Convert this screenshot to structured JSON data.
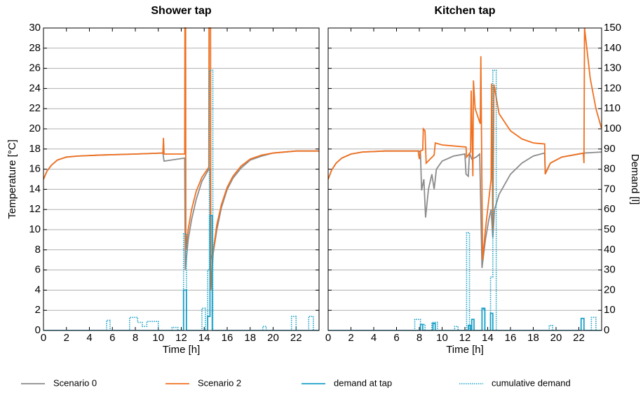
{
  "chart_data": [
    {
      "type": "line",
      "title": "Shower tap",
      "xlabel": "Time [h]",
      "ylabel": "Temperature [°C]",
      "xlim": [
        0,
        24
      ],
      "xticks": [
        0,
        2,
        4,
        6,
        8,
        10,
        12,
        14,
        16,
        18,
        20,
        22
      ],
      "ylim": [
        0,
        30
      ],
      "yticks": [
        0,
        2,
        4,
        6,
        8,
        10,
        12,
        14,
        16,
        18,
        20,
        22,
        24,
        26,
        28,
        30
      ],
      "y2lim": [
        0,
        150
      ],
      "grid": true,
      "series": [
        {
          "name": "Scenario 0",
          "color": "#8c8c8c",
          "x": [
            0,
            0.3,
            0.7,
            1.2,
            2,
            3,
            5,
            8,
            10.4,
            10.5,
            12.3,
            12.35,
            12.6,
            12.9,
            13.3,
            13.8,
            14.4,
            14.5,
            14.55,
            14.8,
            15.1,
            15.5,
            16,
            16.5,
            17.2,
            18,
            19,
            20,
            22,
            24
          ],
          "values": [
            15,
            15.8,
            16.4,
            16.9,
            17.2,
            17.3,
            17.4,
            17.5,
            17.6,
            16.8,
            17.1,
            6,
            9,
            11,
            13,
            14.8,
            16,
            16,
            7,
            7.8,
            10,
            12.2,
            14,
            15.1,
            16.1,
            16.9,
            17.3,
            17.6,
            17.8,
            17.8
          ]
        },
        {
          "name": "Scenario 2",
          "color": "#f07020",
          "x": [
            0,
            0.3,
            0.7,
            1.2,
            2,
            3,
            5,
            8,
            10.4,
            10.45,
            10.5,
            12.3,
            12.32,
            12.38,
            12.4,
            12.6,
            12.9,
            13.3,
            13.8,
            14.4,
            14.42,
            14.55,
            14.57,
            14.8,
            15.1,
            15.5,
            16,
            16.5,
            17.2,
            18,
            19,
            20,
            22,
            24
          ],
          "values": [
            15,
            15.8,
            16.4,
            16.9,
            17.2,
            17.3,
            17.4,
            17.5,
            17.6,
            19.1,
            17.5,
            17.5,
            30,
            30,
            8,
            10,
            12,
            13.8,
            15.2,
            16.2,
            30,
            30,
            4,
            8,
            10.5,
            12.5,
            14.2,
            15.3,
            16.3,
            17,
            17.4,
            17.6,
            17.8,
            17.8
          ]
        },
        {
          "name": "demand at tap",
          "color": "#1aa0c8",
          "axis": "y2",
          "x": [
            0,
            12.2,
            12.2,
            12.45,
            12.45,
            14.3,
            14.3,
            14.5,
            14.5,
            14.7,
            14.7,
            24
          ],
          "values": [
            0,
            0,
            20,
            20,
            0,
            0,
            7,
            7,
            57,
            57,
            0,
            0
          ]
        },
        {
          "name": "cumulative demand",
          "color": "#1aa0c8",
          "axis": "y2",
          "style": "dotted",
          "x": [
            0,
            5.5,
            5.5,
            5.8,
            5.8,
            7.5,
            7.5,
            8.2,
            8.2,
            8.6,
            8.6,
            9,
            9,
            9.2,
            9.2,
            10,
            10,
            11.2,
            11.2,
            11.7,
            11.7,
            12.2,
            12.2,
            12.45,
            12.45,
            13.8,
            13.8,
            14.1,
            14.1,
            14.3,
            14.3,
            14.45,
            14.45,
            14.75,
            14.75,
            19.1,
            19.1,
            19.4,
            19.4,
            21.6,
            21.6,
            22,
            22,
            23.1,
            23.1,
            23.5,
            23.5,
            24
          ],
          "values": [
            0,
            0,
            5,
            5,
            0,
            0,
            6.5,
            6.5,
            4,
            4,
            2,
            2,
            4.5,
            4.5,
            4.5,
            4.5,
            0,
            0,
            1.5,
            1.5,
            0,
            0,
            48,
            48,
            0,
            0,
            11,
            11,
            0,
            0,
            30,
            30,
            129,
            129,
            0,
            0,
            2,
            2,
            0,
            0,
            7,
            7,
            0,
            0,
            7,
            7,
            0,
            0
          ]
        }
      ]
    },
    {
      "type": "line",
      "title": "Kitchen tap",
      "xlabel": "Time [h]",
      "y2label": "Demand [l]",
      "xlim": [
        0,
        24
      ],
      "xticks": [
        0,
        2,
        4,
        6,
        8,
        10,
        12,
        14,
        16,
        18,
        20,
        22
      ],
      "ylim": [
        0,
        30
      ],
      "y2lim": [
        0,
        150
      ],
      "y2ticks": [
        0,
        10,
        20,
        30,
        40,
        50,
        60,
        70,
        80,
        90,
        100,
        110,
        120,
        130,
        140,
        150
      ],
      "grid": true,
      "series": [
        {
          "color": "#8c8c8c",
          "x": [
            0,
            0.3,
            0.7,
            1.2,
            2,
            3,
            5,
            8,
            8.1,
            8.2,
            8.4,
            8.55,
            8.8,
            9.1,
            9.3,
            9.5,
            10,
            11,
            12,
            12.1,
            12.3,
            12.4,
            12.6,
            13,
            13.3,
            13.5,
            13.8,
            14.1,
            14.3,
            14.45,
            14.6,
            15,
            16,
            17,
            18,
            19,
            19.05,
            19.5,
            20.5,
            22.5,
            24
          ],
          "values": [
            15,
            15.9,
            16.6,
            17.1,
            17.5,
            17.7,
            17.8,
            17.8,
            17.6,
            13.9,
            15,
            11.2,
            14,
            15.5,
            14,
            16,
            16.8,
            17.3,
            17.5,
            15.5,
            15.3,
            17.6,
            17,
            17.2,
            17.5,
            6.2,
            9,
            11,
            12,
            9.2,
            12,
            13.5,
            15.5,
            16.6,
            17.3,
            17.6,
            15.6,
            16.6,
            17.2,
            17.6,
            17.7
          ]
        },
        {
          "color": "#f07020",
          "x": [
            0,
            0.3,
            0.7,
            1.2,
            2,
            3,
            5,
            7.9,
            8,
            8.1,
            8.3,
            8.35,
            8.5,
            8.6,
            9.3,
            9.4,
            10,
            12.1,
            12.15,
            12.5,
            12.55,
            12.7,
            12.75,
            12.9,
            13.35,
            13.4,
            13.55,
            13.8,
            14.1,
            14.3,
            14.35,
            14.45,
            14.55,
            15,
            16,
            17,
            18,
            19,
            19.05,
            19.5,
            20.5,
            22.4,
            22.45,
            22.5,
            23,
            23.5,
            24
          ],
          "values": [
            15,
            15.9,
            16.6,
            17.1,
            17.5,
            17.7,
            17.8,
            17.8,
            17,
            17.8,
            17.9,
            20,
            19.8,
            16.6,
            17.4,
            18.6,
            18.4,
            18.2,
            17.2,
            17.7,
            23.8,
            15.3,
            24.8,
            22,
            20.5,
            27.2,
            7,
            10,
            13,
            15,
            24.5,
            10,
            24.4,
            21.5,
            19.8,
            19,
            18.6,
            18.5,
            15.5,
            16.6,
            17.2,
            17.6,
            16.6,
            30,
            25,
            22,
            20
          ]
        },
        {
          "color": "#1aa0c8",
          "axis": "y2",
          "x": [
            0,
            8.1,
            8.1,
            8.3,
            8.3,
            9.2,
            9.2,
            9.4,
            9.4,
            12.3,
            12.3,
            12.5,
            12.5,
            12.6,
            12.6,
            12.8,
            12.8,
            13.5,
            13.5,
            13.75,
            13.75,
            14.25,
            14.25,
            14.45,
            14.45,
            22.2,
            22.2,
            22.45,
            22.45,
            24
          ],
          "values": [
            0,
            0,
            3,
            3,
            0,
            0,
            3.5,
            3.5,
            0,
            0,
            2.5,
            2.5,
            0,
            0,
            5.5,
            5.5,
            0,
            0,
            11,
            11,
            0,
            0,
            8.5,
            8.5,
            0,
            0,
            6,
            6,
            0,
            0
          ]
        },
        {
          "color": "#1aa0c8",
          "axis": "y2",
          "style": "dotted",
          "x": [
            0,
            7.6,
            7.6,
            8.1,
            8.1,
            8.5,
            8.5,
            9.1,
            9.1,
            9.6,
            9.6,
            11.1,
            11.1,
            11.4,
            11.4,
            12.15,
            12.15,
            12.4,
            12.4,
            13.5,
            13.5,
            13.75,
            13.75,
            14.25,
            14.25,
            14.45,
            14.45,
            14.75,
            14.75,
            19.4,
            19.4,
            19.7,
            19.7,
            23.1,
            23.1,
            23.5,
            23.5,
            24
          ],
          "values": [
            0,
            0,
            5.5,
            5.5,
            3,
            3,
            0,
            0,
            4,
            4,
            0,
            0,
            2,
            2,
            0,
            0,
            48.5,
            48.5,
            0,
            0,
            10.5,
            10.5,
            0,
            0,
            26.5,
            26.5,
            129,
            129,
            0,
            0,
            2.5,
            2.5,
            0,
            0,
            6.5,
            6.5,
            0,
            0
          ]
        }
      ]
    }
  ]
}
